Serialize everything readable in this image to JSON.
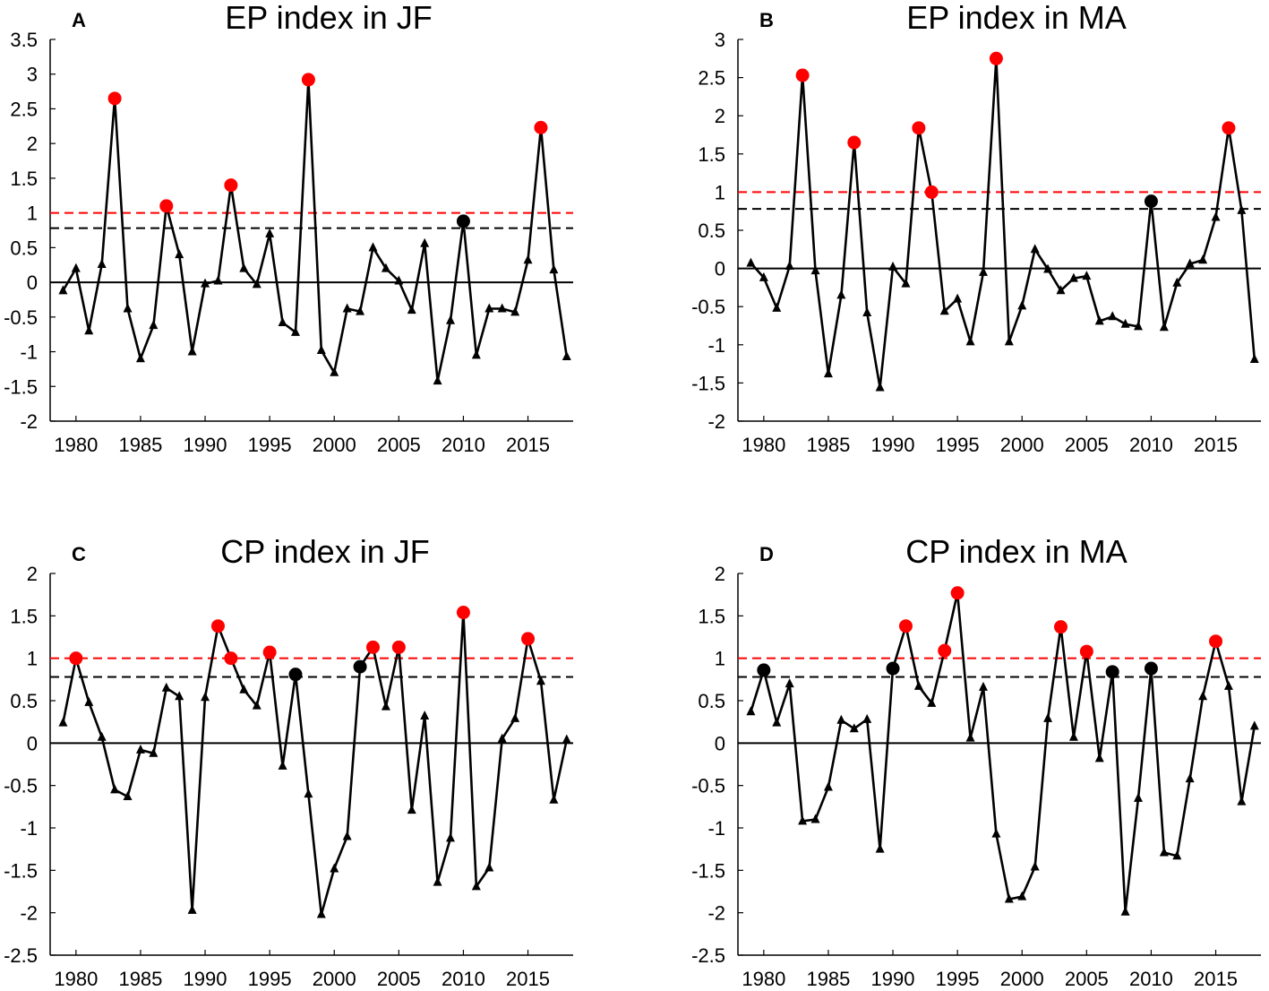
{
  "figure": {
    "colors": {
      "series": "#000000",
      "highlight_red": "#ff0000",
      "highlight_black": "#000000",
      "red_threshold": "#ff0000",
      "black_threshold": "#000000",
      "zero_line": "#000000"
    }
  },
  "chart_data": [
    {
      "type": "line",
      "letter": "A",
      "title": "EP index in JF",
      "xlabel": "",
      "ylabel": "",
      "xlim": [
        1978,
        2018.5
      ],
      "ylim": [
        -2,
        3.5
      ],
      "x_ticks": [
        1980,
        1985,
        1990,
        1995,
        2000,
        2005,
        2010,
        2015
      ],
      "y_ticks": [
        -2,
        -1.5,
        -1,
        -0.5,
        0,
        0.5,
        1,
        1.5,
        2,
        2.5,
        3,
        3.5
      ],
      "y_tick_labels": [
        "-2",
        "-1.5",
        "-1",
        "-0.5",
        "0",
        "0.5",
        "1",
        "1.5",
        "2",
        "2.5",
        "3",
        "3.5"
      ],
      "x_tick_labels": [
        "1980",
        "1985",
        "1990",
        "1995",
        "2000",
        "2005",
        "2010",
        "2015"
      ],
      "thresholds": {
        "red": 1.0,
        "black": 0.78,
        "zero": 0
      },
      "grid": false,
      "x": [
        1979,
        1980,
        1981,
        1982,
        1983,
        1984,
        1985,
        1986,
        1987,
        1988,
        1989,
        1990,
        1991,
        1992,
        1993,
        1994,
        1995,
        1996,
        1997,
        1998,
        1999,
        2000,
        2001,
        2002,
        2003,
        2004,
        2005,
        2006,
        2007,
        2008,
        2009,
        2010,
        2011,
        2012,
        2013,
        2014,
        2015,
        2016,
        2017,
        2018
      ],
      "values": [
        -0.12,
        0.2,
        -0.7,
        0.26,
        2.65,
        -0.38,
        -1.1,
        -0.62,
        1.1,
        0.4,
        -1.0,
        -0.02,
        0.02,
        1.4,
        0.2,
        -0.03,
        0.7,
        -0.58,
        -0.72,
        2.92,
        -0.98,
        -1.3,
        -0.38,
        -0.42,
        0.5,
        0.2,
        0.02,
        -0.4,
        0.56,
        -1.42,
        -0.55,
        0.88,
        -1.05,
        -0.38,
        -0.38,
        -0.43,
        0.32,
        2.23,
        0.18,
        -1.07
      ],
      "red_dots": [
        1983,
        1987,
        1992,
        1998,
        2016
      ],
      "black_dots": [
        2010
      ]
    },
    {
      "type": "line",
      "letter": "B",
      "title": "EP index in MA",
      "xlabel": "",
      "ylabel": "",
      "xlim": [
        1978,
        2018.5
      ],
      "ylim": [
        -2,
        3
      ],
      "x_ticks": [
        1980,
        1985,
        1990,
        1995,
        2000,
        2005,
        2010,
        2015
      ],
      "y_ticks": [
        -2,
        -1.5,
        -1,
        -0.5,
        0,
        0.5,
        1,
        1.5,
        2,
        2.5,
        3
      ],
      "y_tick_labels": [
        "-2",
        "-1.5",
        "-1",
        "-0.5",
        "0",
        "0.5",
        "1",
        "1.5",
        "2",
        "2.5",
        "3"
      ],
      "x_tick_labels": [
        "1980",
        "1985",
        "1990",
        "1995",
        "2000",
        "2005",
        "2010",
        "2015"
      ],
      "thresholds": {
        "red": 1.0,
        "black": 0.78,
        "zero": 0
      },
      "grid": false,
      "x": [
        1979,
        1980,
        1981,
        1982,
        1983,
        1984,
        1985,
        1986,
        1987,
        1988,
        1989,
        1990,
        1991,
        1992,
        1993,
        1994,
        1995,
        1996,
        1997,
        1998,
        1999,
        2000,
        2001,
        2002,
        2003,
        2004,
        2005,
        2006,
        2007,
        2008,
        2009,
        2010,
        2011,
        2012,
        2013,
        2014,
        2015,
        2016,
        2017,
        2018
      ],
      "values": [
        0.07,
        -0.12,
        -0.52,
        0.03,
        2.53,
        -0.03,
        -1.38,
        -0.35,
        1.65,
        -0.58,
        -1.56,
        0.02,
        -0.2,
        1.84,
        1.0,
        -0.56,
        -0.4,
        -0.96,
        -0.05,
        2.75,
        -0.96,
        -0.49,
        0.25,
        -0.01,
        -0.29,
        -0.13,
        -0.1,
        -0.69,
        -0.63,
        -0.73,
        -0.76,
        0.88,
        -0.77,
        -0.19,
        0.06,
        0.11,
        0.67,
        1.84,
        0.76,
        -1.19
      ],
      "red_dots": [
        1983,
        1987,
        1992,
        1993,
        1998,
        2016
      ],
      "black_dots": [
        2010
      ]
    },
    {
      "type": "line",
      "letter": "C",
      "title": "CP index in JF",
      "xlabel": "",
      "ylabel": "",
      "xlim": [
        1978,
        2018.5
      ],
      "ylim": [
        -2.5,
        2
      ],
      "x_ticks": [
        1980,
        1985,
        1990,
        1995,
        2000,
        2005,
        2010,
        2015
      ],
      "y_ticks": [
        -2.5,
        -2,
        -1.5,
        -1,
        -0.5,
        0,
        0.5,
        1,
        1.5,
        2
      ],
      "y_tick_labels": [
        "-2.5",
        "-2",
        "-1.5",
        "-1",
        "-0.5",
        "0",
        "0.5",
        "1",
        "1.5",
        "2"
      ],
      "x_tick_labels": [
        "1980",
        "1985",
        "1990",
        "1995",
        "2000",
        "2005",
        "2010",
        "2015"
      ],
      "thresholds": {
        "red": 1.0,
        "black": 0.78,
        "zero": 0
      },
      "grid": false,
      "x": [
        1979,
        1980,
        1981,
        1982,
        1983,
        1984,
        1985,
        1986,
        1987,
        1988,
        1989,
        1990,
        1991,
        1992,
        1993,
        1994,
        1995,
        1996,
        1997,
        1998,
        1999,
        2000,
        2001,
        2002,
        2003,
        2004,
        2005,
        2006,
        2007,
        2008,
        2009,
        2010,
        2011,
        2012,
        2013,
        2014,
        2015,
        2016,
        2017,
        2018
      ],
      "values": [
        0.24,
        1.0,
        0.48,
        0.07,
        -0.55,
        -0.63,
        -0.08,
        -0.12,
        0.65,
        0.55,
        -1.97,
        0.54,
        1.38,
        1.0,
        0.63,
        0.44,
        1.07,
        -0.27,
        0.81,
        -0.6,
        -2.02,
        -1.48,
        -1.1,
        0.9,
        1.13,
        0.43,
        1.13,
        -0.79,
        0.32,
        -1.64,
        -1.12,
        1.54,
        -1.69,
        -1.47,
        0.05,
        0.29,
        1.23,
        0.73,
        -0.67,
        0.04
      ],
      "red_dots": [
        1980,
        1991,
        1992,
        1995,
        2003,
        2005,
        2010,
        2015
      ],
      "black_dots": [
        1997,
        2002
      ]
    },
    {
      "type": "line",
      "letter": "D",
      "title": "CP index in MA",
      "xlabel": "",
      "ylabel": "",
      "xlim": [
        1978,
        2018.5
      ],
      "ylim": [
        -2.5,
        2
      ],
      "x_ticks": [
        1980,
        1985,
        1990,
        1995,
        2000,
        2005,
        2010,
        2015
      ],
      "y_ticks": [
        -2.5,
        -2,
        -1.5,
        -1,
        -0.5,
        0,
        0.5,
        1,
        1.5,
        2
      ],
      "y_tick_labels": [
        "-2.5",
        "-2",
        "-1.5",
        "-1",
        "-0.5",
        "0",
        "0.5",
        "1",
        "1.5",
        "2"
      ],
      "x_tick_labels": [
        "1980",
        "1985",
        "1990",
        "1995",
        "2000",
        "2005",
        "2010",
        "2015"
      ],
      "thresholds": {
        "red": 1.0,
        "black": 0.78,
        "zero": 0
      },
      "grid": false,
      "x": [
        1979,
        1980,
        1981,
        1982,
        1983,
        1984,
        1985,
        1986,
        1987,
        1988,
        1989,
        1990,
        1991,
        1992,
        1993,
        1994,
        1995,
        1996,
        1997,
        1998,
        1999,
        2000,
        2001,
        2002,
        2003,
        2004,
        2005,
        2006,
        2007,
        2008,
        2009,
        2010,
        2011,
        2012,
        2013,
        2014,
        2015,
        2016,
        2017,
        2018
      ],
      "values": [
        0.37,
        0.86,
        0.24,
        0.7,
        -0.92,
        -0.9,
        -0.52,
        0.27,
        0.17,
        0.28,
        -1.25,
        0.88,
        1.38,
        0.67,
        0.47,
        1.09,
        1.77,
        0.06,
        0.66,
        -1.07,
        -1.84,
        -1.81,
        -1.46,
        0.29,
        1.37,
        0.07,
        1.08,
        -0.18,
        0.84,
        -1.99,
        -0.65,
        0.88,
        -1.29,
        -1.33,
        -0.42,
        0.55,
        1.2,
        0.67,
        -0.69,
        0.2
      ],
      "red_dots": [
        1991,
        1994,
        1995,
        2003,
        2005,
        2015
      ],
      "black_dots": [
        1980,
        1990,
        2007,
        2010
      ]
    }
  ]
}
